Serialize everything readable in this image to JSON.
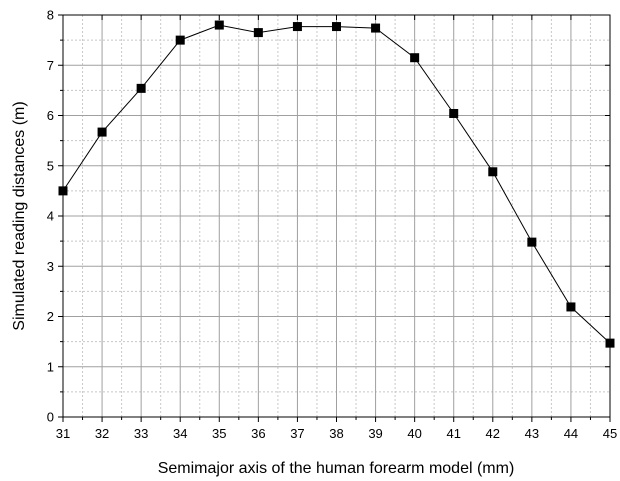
{
  "chart_data": {
    "type": "line",
    "title": "",
    "xlabel": "Semimajor axis of the human forearm model (mm)",
    "ylabel": "Simulated reading distances (m)",
    "xlim": [
      31,
      45
    ],
    "ylim": [
      0,
      8
    ],
    "xticks": [
      31,
      32,
      33,
      34,
      35,
      36,
      37,
      38,
      39,
      40,
      41,
      42,
      43,
      44,
      45
    ],
    "yticks": [
      0,
      1,
      2,
      3,
      4,
      5,
      6,
      7,
      8
    ],
    "grid": true,
    "legend": "none",
    "marker": "square",
    "series": [
      {
        "x": [
          31,
          32,
          33,
          34,
          35,
          36,
          37,
          38,
          39,
          40,
          41,
          42,
          43,
          44,
          45
        ],
        "values": [
          4.5,
          5.67,
          6.54,
          7.5,
          7.8,
          7.65,
          7.77,
          7.77,
          7.74,
          7.15,
          6.04,
          4.88,
          3.48,
          2.19,
          1.47
        ]
      }
    ],
    "colors": {
      "line": "#000000",
      "marker": "#000000",
      "grid": "#a0a0a0"
    }
  }
}
